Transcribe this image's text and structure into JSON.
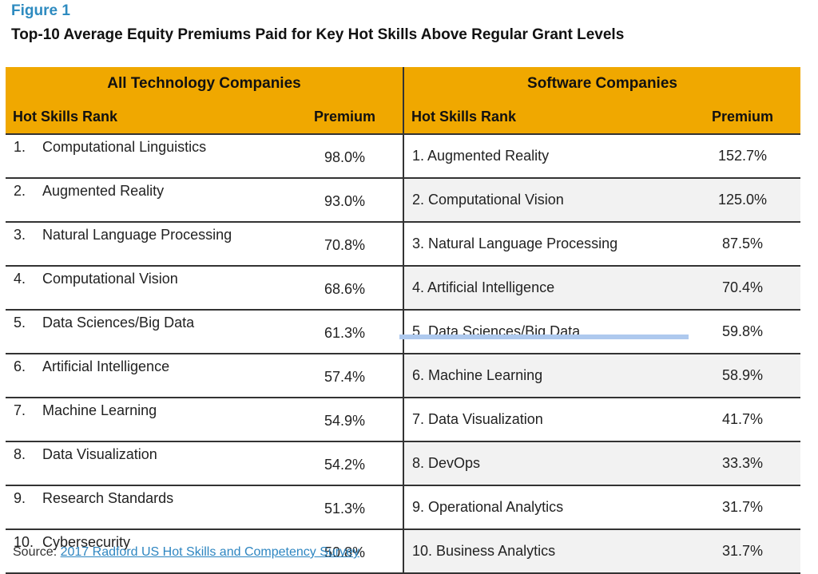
{
  "figure_label": "Figure 1",
  "title": "Top-10 Average Equity Premiums Paid for Key Hot Skills Above Regular Grant Levels",
  "groups": {
    "left": "All Technology Companies",
    "right": "Software Companies"
  },
  "columns": {
    "left_rank": "Hot Skills Rank",
    "left_premium": "Premium",
    "right_rank": "Hot Skills Rank",
    "right_premium": "Premium"
  },
  "rows": [
    {
      "l_num": "1.",
      "l_skill": "Computational Linguistics",
      "l_prem": "98.0%",
      "r_skill": "1. Augmented Reality",
      "r_prem": "152.7%"
    },
    {
      "l_num": "2.",
      "l_skill": "Augmented Reality",
      "l_prem": "93.0%",
      "r_skill": "2. Computational Vision",
      "r_prem": "125.0%"
    },
    {
      "l_num": "3.",
      "l_skill": "Natural Language Processing",
      "l_prem": "70.8%",
      "r_skill": "3. Natural Language Processing",
      "r_prem": "87.5%"
    },
    {
      "l_num": "4.",
      "l_skill": "Computational Vision",
      "l_prem": "68.6%",
      "r_skill": "4. Artificial Intelligence",
      "r_prem": "70.4%"
    },
    {
      "l_num": "5.",
      "l_skill": "Data Sciences/Big Data",
      "l_prem": "61.3%",
      "r_skill": "5. Data Sciences/Big Data",
      "r_prem": "59.8%"
    },
    {
      "l_num": "6.",
      "l_skill": "Artificial Intelligence",
      "l_prem": "57.4%",
      "r_skill": "6. Machine Learning",
      "r_prem": "58.9%"
    },
    {
      "l_num": "7.",
      "l_skill": "Machine Learning",
      "l_prem": "54.9%",
      "r_skill": "7. Data Visualization",
      "r_prem": "41.7%"
    },
    {
      "l_num": "8.",
      "l_skill": "Data Visualization",
      "l_prem": "54.2%",
      "r_skill": "8. DevOps",
      "r_prem": "33.3%"
    },
    {
      "l_num": "9.",
      "l_skill": "Research Standards",
      "l_prem": "51.3%",
      "r_skill": "9. Operational Analytics",
      "r_prem": "31.7%"
    },
    {
      "l_num": "10.",
      "l_skill": "Cybersecurity",
      "l_prem": "50.8%",
      "r_skill": "10. Business Analytics",
      "r_prem": "31.7%"
    }
  ],
  "source": {
    "label": "Source: ",
    "link_text": "2017 Radford US Hot Skills and Competency Survey"
  },
  "colors": {
    "header_bg": "#f0a800",
    "figure_label": "#2e8bc0",
    "link": "#2e86c1",
    "highlight_bar": "#aec9ee"
  }
}
